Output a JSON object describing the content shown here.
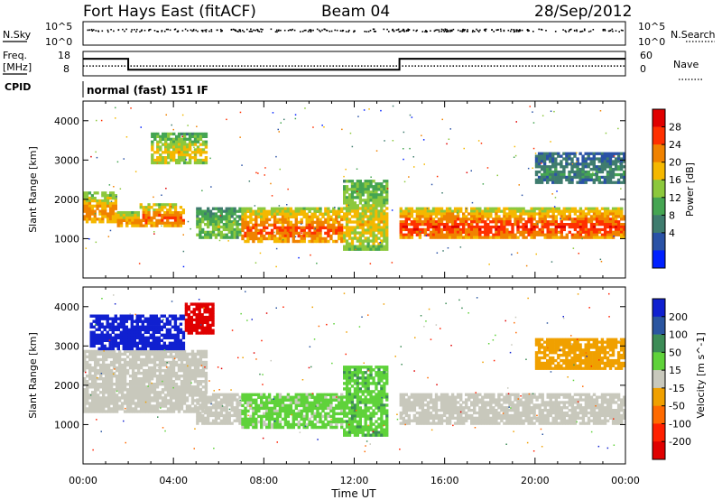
{
  "header": {
    "station": "Fort Hays East (fitACF)",
    "beam": "Beam 04",
    "date": "28/Sep/2012"
  },
  "strip": {
    "nsky_label": "N.Sky",
    "nsky_hi": "10^5",
    "nsky_lo": "10^0",
    "nsearch_label": "N.Search",
    "nsearch_hi": "10^5",
    "nsearch_lo": "10^0",
    "freq_label": "Freq.",
    "freq_unit": "[MHz]",
    "freq_hi": "18",
    "freq_lo": "8",
    "nave_label": "Nave",
    "nave_hi": "60",
    "nave_lo": "0",
    "cpid_label": "CPID",
    "cpid_value": "normal (fast) 151 IF"
  },
  "power_panel": {
    "ylabel": "Slant Range [km]",
    "yticks": [
      "1000",
      "2000",
      "3000",
      "4000"
    ],
    "colorbar_label": "Power [dB]",
    "colorbar_ticks": [
      "4",
      "8",
      "12",
      "16",
      "20",
      "24",
      "28"
    ],
    "colors": [
      "#0020ff",
      "#2a52a6",
      "#3f7c6e",
      "#45a552",
      "#8cc83c",
      "#f5b800",
      "#f08200",
      "#ff3000",
      "#e00000"
    ]
  },
  "velocity_panel": {
    "ylabel": "Slant Range [km]",
    "yticks": [
      "1000",
      "2000",
      "3000",
      "4000"
    ],
    "colorbar_label": "Velocity [m s^-1]",
    "colorbar_ticks": [
      "200",
      "100",
      "50",
      "15",
      "-15",
      "-50",
      "-100",
      "-200"
    ],
    "colors": [
      "#1020d0",
      "#2a55a0",
      "#3c8c56",
      "#5fd23a",
      "#c8c8bc",
      "#f0a000",
      "#ff6a00",
      "#ff2000",
      "#e00000"
    ]
  },
  "xaxis": {
    "label": "Time UT",
    "ticks": [
      "00:00",
      "04:00",
      "08:00",
      "12:00",
      "16:00",
      "20:00",
      "00:00"
    ]
  },
  "chart_data": [
    {
      "type": "line",
      "title": "Fort Hays East (fitACF)  Beam 04  28/Sep/2012",
      "xlabel": "Time UT",
      "series": [
        {
          "name": "Freq.",
          "x": [
            "00:00",
            "02:00",
            "02:00",
            "14:00",
            "14:00",
            "24:00"
          ],
          "values": [
            15,
            15,
            10.5,
            10.5,
            15,
            15
          ]
        },
        {
          "name": "Nave",
          "x": [
            "00:00",
            "02:00",
            "02:00",
            "14:00",
            "14:00",
            "24:00"
          ],
          "values": [
            15,
            15,
            15,
            15,
            15,
            15
          ]
        }
      ],
      "ylim": [
        8,
        18
      ]
    },
    {
      "type": "heatmap",
      "title": "Power [dB]",
      "xlabel": "Time UT",
      "ylabel": "Slant Range [km]",
      "xlim": [
        0,
        24
      ],
      "ylim": [
        0,
        4500
      ],
      "zlim": [
        0,
        30
      ],
      "regions": [
        {
          "t": [
            0.0,
            1.5
          ],
          "range_km": [
            1400,
            2200
          ],
          "power_db": 22
        },
        {
          "t": [
            1.5,
            2.5
          ],
          "range_km": [
            1300,
            1700
          ],
          "power_db": 22
        },
        {
          "t": [
            2.5,
            4.5
          ],
          "range_km": [
            1300,
            1900
          ],
          "power_db": 24
        },
        {
          "t": [
            3.0,
            5.5
          ],
          "range_km": [
            2900,
            3700
          ],
          "power_db": 18
        },
        {
          "t": [
            5.0,
            7.0
          ],
          "range_km": [
            1000,
            1800
          ],
          "power_db": 14
        },
        {
          "t": [
            7.0,
            11.5
          ],
          "range_km": [
            900,
            1800
          ],
          "power_db": 24
        },
        {
          "t": [
            11.5,
            13.5
          ],
          "range_km": [
            700,
            2500
          ],
          "power_db": 18
        },
        {
          "t": [
            14.0,
            24.0
          ],
          "range_km": [
            1000,
            1800
          ],
          "power_db": 26
        },
        {
          "t": [
            20.0,
            24.0
          ],
          "range_km": [
            2400,
            3200
          ],
          "power_db": 8
        }
      ]
    },
    {
      "type": "heatmap",
      "title": "Velocity [m s^-1]",
      "xlabel": "Time UT",
      "ylabel": "Slant Range [km]",
      "xlim": [
        0,
        24
      ],
      "ylim": [
        0,
        4500
      ],
      "zlim": [
        -200,
        200
      ],
      "regions": [
        {
          "t": [
            0.0,
            5.5
          ],
          "range_km": [
            1300,
            2900
          ],
          "velocity": 0
        },
        {
          "t": [
            0.3,
            4.5
          ],
          "range_km": [
            2900,
            3800
          ],
          "velocity": 200
        },
        {
          "t": [
            4.5,
            5.8
          ],
          "range_km": [
            3300,
            4100
          ],
          "velocity": -200
        },
        {
          "t": [
            5.0,
            7.0
          ],
          "range_km": [
            1000,
            1800
          ],
          "velocity": 0
        },
        {
          "t": [
            7.0,
            11.5
          ],
          "range_km": [
            900,
            1800
          ],
          "velocity": 40
        },
        {
          "t": [
            11.5,
            13.5
          ],
          "range_km": [
            700,
            2500
          ],
          "velocity": 60
        },
        {
          "t": [
            14.0,
            24.0
          ],
          "range_km": [
            1000,
            1800
          ],
          "velocity": 0
        },
        {
          "t": [
            20.0,
            24.0
          ],
          "range_km": [
            2400,
            3200
          ],
          "velocity": -50
        }
      ]
    }
  ]
}
